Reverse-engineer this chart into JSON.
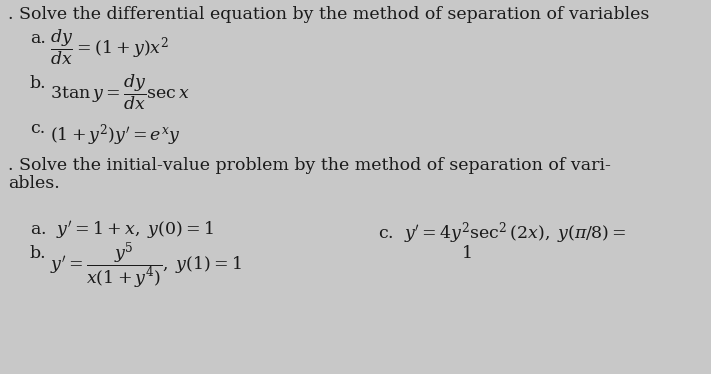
{
  "background_color": "#c8c8c8",
  "text_color": "#1a1a1a",
  "title1": ". Solve the differential equation by the method of separation of variables",
  "eq1b_line1": "$3\\tan y = \\dfrac{dy}{dx}\\sec x$",
  "eq1c_line1": "$(1+y^2)y' = e^x y$",
  "title2_line1": ". Solve the initial-value problem by the method of separation of vari-",
  "title2_line2": "ables.",
  "eq2a": "a.  $y' = 1 + x,\\; y(0) = 1$",
  "eq2c_line1": "c.  $y' = 4y^2 \\sec^2(2x),\\; y(\\pi/8) =$",
  "eq2c_line2": "1",
  "font_size_title": 12.5,
  "font_size_eq": 12.5
}
